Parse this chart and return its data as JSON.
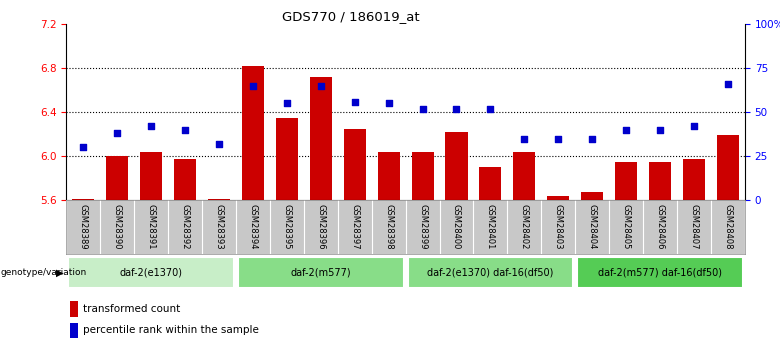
{
  "title": "GDS770 / 186019_at",
  "samples": [
    "GSM28389",
    "GSM28390",
    "GSM28391",
    "GSM28392",
    "GSM28393",
    "GSM28394",
    "GSM28395",
    "GSM28396",
    "GSM28397",
    "GSM28398",
    "GSM28399",
    "GSM28400",
    "GSM28401",
    "GSM28402",
    "GSM28403",
    "GSM28404",
    "GSM28405",
    "GSM28406",
    "GSM28407",
    "GSM28408"
  ],
  "transformed_count": [
    5.61,
    6.0,
    6.04,
    5.97,
    5.61,
    6.82,
    6.35,
    6.72,
    6.25,
    6.04,
    6.04,
    6.22,
    5.9,
    6.04,
    5.64,
    5.67,
    5.95,
    5.95,
    5.97,
    6.19
  ],
  "percentile_rank": [
    30,
    38,
    42,
    40,
    32,
    65,
    55,
    65,
    56,
    55,
    52,
    52,
    52,
    35,
    35,
    35,
    40,
    40,
    42,
    66
  ],
  "ylim_left": [
    5.6,
    7.2
  ],
  "ylim_right": [
    0,
    100
  ],
  "yticks_left": [
    5.6,
    6.0,
    6.4,
    6.8,
    7.2
  ],
  "yticks_right": [
    0,
    25,
    50,
    75,
    100
  ],
  "ytick_labels_right": [
    "0",
    "25",
    "50",
    "75",
    "100%"
  ],
  "groups": [
    {
      "label": "daf-2(e1370)",
      "start": 0,
      "end": 5,
      "color": "#c8eec8"
    },
    {
      "label": "daf-2(m577)",
      "start": 5,
      "end": 10,
      "color": "#88dd88"
    },
    {
      "label": "daf-2(e1370) daf-16(df50)",
      "start": 10,
      "end": 15,
      "color": "#88dd88"
    },
    {
      "label": "daf-2(m577) daf-16(df50)",
      "start": 15,
      "end": 20,
      "color": "#55cc55"
    }
  ],
  "bar_color": "#cc0000",
  "marker_color": "#0000cc",
  "bar_bottom": 5.6,
  "xtick_bg": "#c8c8c8",
  "legend_items": [
    {
      "color": "#cc0000",
      "label": "transformed count"
    },
    {
      "color": "#0000cc",
      "label": "percentile rank within the sample"
    }
  ]
}
